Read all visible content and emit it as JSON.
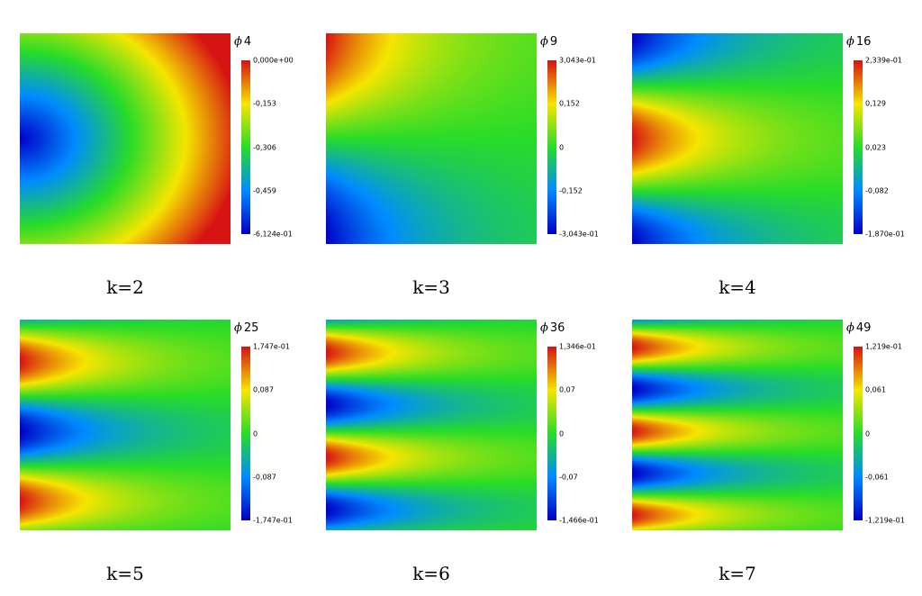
{
  "chart_data": [
    {
      "type": "heatmap",
      "mode": 0,
      "field": "4",
      "k_label": "k=2",
      "colorbar": {
        "min": "-6,124e-01",
        "max": "0,000e+00",
        "ticks": [
          "0,000e+00",
          "-0,153",
          "-0,306",
          "-0,459",
          "-6,124e-01"
        ]
      }
    },
    {
      "type": "heatmap",
      "mode": 1,
      "field": "9",
      "k_label": "k=3",
      "colorbar": {
        "min": "-3,043e-01",
        "max": "3,043e-01",
        "ticks": [
          "3,043e-01",
          "0,152",
          "0",
          "-0,152",
          "-3,043e-01"
        ]
      }
    },
    {
      "type": "heatmap",
      "mode": 2,
      "field": "16",
      "k_label": "k=4",
      "colorbar": {
        "min": "-1,870e-01",
        "max": "2,339e-01",
        "ticks": [
          "2,339e-01",
          "0,129",
          "0,023",
          "-0,082",
          "-1,870e-01"
        ]
      }
    },
    {
      "type": "heatmap",
      "mode": 3,
      "field": "25",
      "k_label": "k=5",
      "colorbar": {
        "min": "-1,747e-01",
        "max": "1,747e-01",
        "ticks": [
          "1,747e-01",
          "0,087",
          "0",
          "-0,087",
          "-1,747e-01"
        ]
      }
    },
    {
      "type": "heatmap",
      "mode": 4,
      "field": "36",
      "k_label": "k=6",
      "colorbar": {
        "min": "-1,466e-01",
        "max": "1,346e-01",
        "ticks": [
          "1,346e-01",
          "0,07",
          "0",
          "-0,07",
          "-1,466e-01"
        ]
      }
    },
    {
      "type": "heatmap",
      "mode": 5,
      "field": "49",
      "k_label": "k=7",
      "colorbar": {
        "min": "-1,219e-01",
        "max": "1,219e-01",
        "ticks": [
          "1,219e-01",
          "0,061",
          "0",
          "-0,061",
          "-1,219e-01"
        ]
      }
    }
  ],
  "symbol": "ϕ"
}
